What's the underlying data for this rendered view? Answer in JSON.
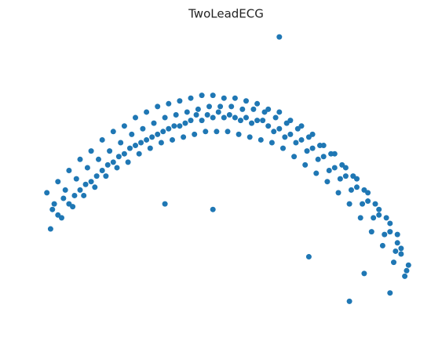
{
  "chart_data": {
    "type": "scatter",
    "title": "TwoLeadECG",
    "color": "#1f77b4",
    "xlim": [
      0,
      100
    ],
    "ylim": [
      0,
      100
    ],
    "x": [
      2,
      3,
      4,
      1,
      2.5,
      5,
      6,
      7,
      4,
      5.5,
      8,
      9,
      10,
      7,
      8.5,
      11,
      12,
      13,
      10,
      11.5,
      14,
      15,
      16,
      13,
      14.5,
      17,
      18,
      19,
      16,
      17.5,
      20,
      21,
      22,
      19,
      20.5,
      23,
      24,
      25,
      22,
      23.5,
      26,
      27,
      28,
      25,
      26.5,
      29,
      30,
      31,
      28,
      29.5,
      32,
      33,
      34,
      31,
      32.5,
      35,
      36,
      37,
      34,
      35.5,
      38,
      39,
      40,
      37,
      38.5,
      41,
      42,
      43,
      40,
      41.5,
      44,
      45,
      46,
      43,
      44.5,
      47,
      48,
      49,
      46,
      47.5,
      50,
      51,
      52,
      49,
      50.5,
      53,
      54,
      55,
      52,
      53.5,
      56,
      57,
      58,
      55,
      56.5,
      59,
      60,
      61,
      58,
      59.5,
      62,
      63,
      64,
      61,
      62.5,
      65,
      66,
      67,
      64,
      65.5,
      68,
      69,
      70,
      67,
      68.5,
      71,
      72,
      73,
      70,
      71.5,
      74,
      75,
      76,
      73,
      74.5,
      77,
      78,
      79,
      76,
      77.5,
      80,
      81,
      82,
      79,
      80.5,
      83,
      84,
      85,
      82,
      83.5,
      86,
      87,
      88,
      85,
      86.5,
      89,
      90,
      91,
      88,
      89.5,
      92,
      93,
      94,
      91,
      92.5,
      95,
      96,
      97,
      94,
      95.5,
      98,
      97,
      99,
      96,
      98.5,
      64,
      83,
      87,
      94,
      72,
      46,
      33
    ],
    "y": [
      29,
      38,
      34,
      42,
      36,
      33,
      43,
      38,
      46,
      40,
      37,
      47,
      43,
      50,
      41,
      41,
      51,
      46,
      54,
      45,
      44,
      54,
      50,
      57,
      48,
      48,
      57,
      53,
      61,
      52,
      51,
      60,
      56,
      64,
      55,
      53,
      63,
      59,
      66,
      58,
      56,
      65,
      61,
      69,
      60,
      58,
      67,
      63,
      71,
      62,
      60,
      69,
      65,
      73,
      64,
      61,
      70,
      66,
      74,
      66,
      62,
      71,
      68,
      75,
      67,
      63,
      72,
      68,
      76,
      70,
      64,
      73,
      69,
      77,
      70,
      64,
      73,
      69,
      77,
      71,
      64,
      73,
      69,
      76,
      70,
      63,
      72,
      69,
      76,
      68,
      62,
      72,
      68,
      75,
      67,
      61,
      71,
      66,
      74,
      68,
      60,
      69,
      65,
      72,
      64,
      58,
      67,
      63,
      71,
      62,
      55,
      65,
      61,
      68,
      60,
      52,
      62,
      58,
      66,
      57,
      49,
      59,
      55,
      63,
      54,
      46,
      56,
      51,
      59,
      50,
      42,
      52,
      48,
      56,
      47,
      38,
      48,
      44,
      51,
      43,
      33,
      43,
      39,
      47,
      38,
      28,
      38,
      34,
      42,
      33,
      23,
      33,
      28,
      36,
      27,
      17,
      27,
      22,
      31,
      21,
      12,
      20,
      16,
      24,
      14,
      98,
      3,
      13,
      6,
      19,
      36,
      38
    ]
  }
}
